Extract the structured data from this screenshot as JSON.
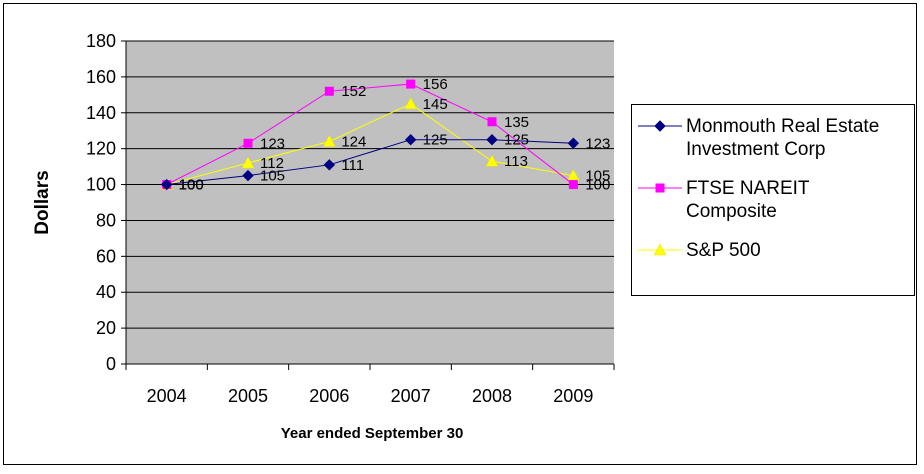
{
  "chart_data": {
    "type": "line",
    "title": "",
    "xlabel": "Year ended September 30",
    "ylabel": "Dollars",
    "categories": [
      "2004",
      "2005",
      "2006",
      "2007",
      "2008",
      "2009"
    ],
    "ylim": [
      0,
      180
    ],
    "yticks": [
      0,
      20,
      40,
      60,
      80,
      100,
      120,
      140,
      160,
      180
    ],
    "grid": true,
    "plot_background": "#c0c0c0",
    "legend_position": "right",
    "series": [
      {
        "name": "Monmouth Real Estate\nInvestment Corp",
        "values": [
          100,
          105,
          111,
          125,
          125,
          123
        ],
        "color": "#000080",
        "marker": "diamond"
      },
      {
        "name": "FTSE NAREIT\nComposite",
        "values": [
          100,
          123,
          152,
          156,
          135,
          100
        ],
        "color": "#ff00ff",
        "marker": "square"
      },
      {
        "name": "S&P 500",
        "values": [
          100,
          112,
          124,
          145,
          113,
          105
        ],
        "color": "#ffff00",
        "marker": "triangle"
      }
    ]
  }
}
